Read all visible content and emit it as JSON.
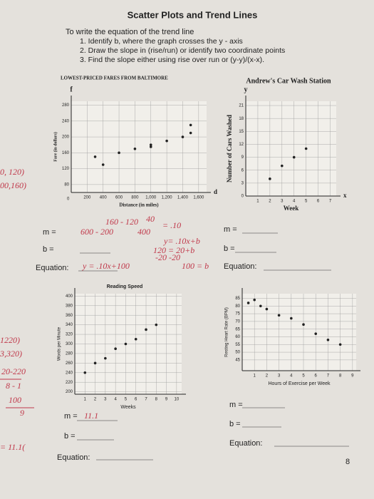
{
  "header": {
    "title": "Scatter Plots and Trend Lines",
    "intro": "To write the equation of the trend line",
    "steps": [
      "1. Identify b, where the graph crosses the y - axis",
      "2. Draw the slope in (rise/run) or identify two coordinate points",
      "3. Find the slope either using rise over run or (y-y)/(x-x)."
    ]
  },
  "problems": [
    {
      "m_label": "m =",
      "b_label": "b =",
      "equation_label": "Equation:"
    },
    {
      "m_label": "m =",
      "b_label": "b =",
      "equation_label": "Equation:"
    },
    {
      "m_label": "m =",
      "b_label": "b =",
      "equation_label": "Equation:"
    },
    {
      "m_label": "m =",
      "b_label": "b =",
      "equation_label": "Equation:"
    }
  ],
  "handwriting": {
    "point_a": "0, 120)",
    "point_b": "00,160)",
    "slope_top": "160 - 120",
    "slope_rise": "40",
    "slope_bottom": "600 - 200",
    "slope_run": "400",
    "slope_result": "= .10",
    "form": "y= .10x+b",
    "sub": "120 = 20+b",
    "sub2": "-20  -20",
    "b_result": "100 = b",
    "equation": "y = .10x+100",
    "left_1": "1220)",
    "left_2": "3,320)",
    "left_3": "20-220",
    "left_4": "8 - 1",
    "left_5": "100",
    "left_6": "9",
    "m_answer": "11.1",
    "left_7": "= 11.1("
  },
  "page_number": "8",
  "chart_data": [
    {
      "type": "scatter",
      "title": "LOWEST-PRICED FARES FROM BALTIMORE",
      "x_label": "Distance (in miles)",
      "y_label": "Fare (in dollars)",
      "x_letter": "d",
      "y_letter": "f",
      "origin_label": "0",
      "x": [
        300,
        400,
        600,
        800,
        1000,
        1000,
        1200,
        1400,
        1500,
        1500
      ],
      "values": [
        150,
        130,
        160,
        170,
        180,
        175,
        190,
        200,
        230,
        210
      ],
      "color": "#222",
      "xlim": [
        0,
        1700
      ],
      "ylim": [
        60,
        290
      ],
      "xticks": [
        200,
        400,
        600,
        800,
        {
          "value": 1000,
          "label": "1,000"
        },
        {
          "value": 1200,
          "label": "1,200"
        },
        {
          "value": 1400,
          "label": "1,400"
        },
        {
          "value": 1600,
          "label": "1,600"
        }
      ],
      "yticks": [
        80,
        120,
        160,
        200,
        240,
        280
      ],
      "grid": true
    },
    {
      "type": "scatter",
      "title": "Andrew's Car Wash Station",
      "x_label": "Week",
      "y_label": "Number of Cars Washed",
      "x_letter": "x",
      "y_letter": "y",
      "x": [
        2,
        3,
        4,
        5
      ],
      "values": [
        4,
        7,
        9,
        11
      ],
      "color": "#222",
      "xlim": [
        0,
        7.5
      ],
      "ylim": [
        0,
        22
      ],
      "xticks": [
        1,
        2,
        3,
        4,
        5,
        6,
        7
      ],
      "yticks": [
        0,
        3,
        6,
        9,
        12,
        15,
        18,
        21
      ],
      "grid": true
    },
    {
      "type": "scatter",
      "title": "Reading Speed",
      "x_label": "Weeks",
      "y_label": "Words per Minute",
      "x": [
        1,
        2,
        3,
        4,
        5,
        6,
        7,
        8
      ],
      "values": [
        240,
        260,
        270,
        290,
        300,
        310,
        330,
        340
      ],
      "color": "#222",
      "xlim": [
        0,
        10.5
      ],
      "ylim": [
        195,
        405
      ],
      "xticks": [
        1,
        2,
        3,
        4,
        5,
        6,
        7,
        8,
        9,
        10
      ],
      "yticks": [
        200,
        220,
        240,
        260,
        280,
        300,
        320,
        340,
        360,
        380,
        400
      ],
      "grid": true
    },
    {
      "type": "scatter",
      "title": "",
      "x_label": "Hours of Exercise per Week",
      "y_label": "Resting Heart Rate (BPM)",
      "x": [
        0.5,
        1,
        1.5,
        2,
        3,
        4,
        5,
        6,
        7,
        8
      ],
      "values": [
        82,
        84,
        80,
        78,
        74,
        72,
        68,
        62,
        58,
        55
      ],
      "color": "#222",
      "xlim": [
        0,
        9.3
      ],
      "ylim": [
        38,
        88
      ],
      "xticks": [
        1,
        2,
        3,
        4,
        5,
        6,
        7,
        8,
        9
      ],
      "yticks": [
        45,
        50,
        55,
        60,
        65,
        70,
        75,
        80,
        85
      ],
      "grid": true
    }
  ]
}
